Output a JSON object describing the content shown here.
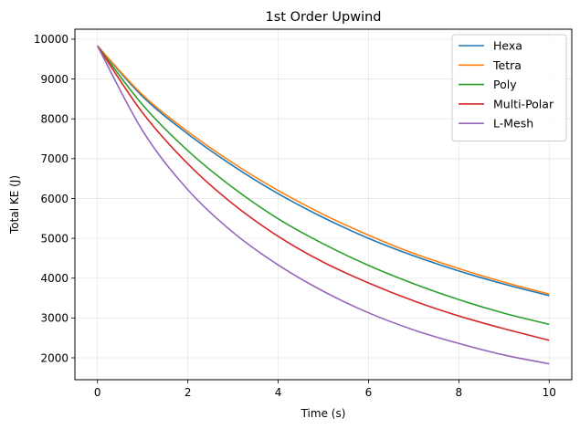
{
  "chart_data": {
    "type": "line",
    "title": "1st Order Upwind",
    "xlabel": "Time (s)",
    "ylabel": "Total KE (J)",
    "xlim": [
      -0.5,
      10.5
    ],
    "ylim": [
      1450,
      10250
    ],
    "xticks": [
      0,
      2,
      4,
      6,
      8,
      10
    ],
    "yticks": [
      2000,
      3000,
      4000,
      5000,
      6000,
      7000,
      8000,
      9000,
      10000
    ],
    "grid": true,
    "legend_position": "top-right",
    "x": [
      0,
      1,
      2,
      3,
      4,
      5,
      6,
      7,
      8,
      9,
      10
    ],
    "series": [
      {
        "name": "Hexa",
        "color": "#1f77b4",
        "values": [
          9830,
          8560,
          7620,
          6820,
          6120,
          5520,
          5000,
          4560,
          4180,
          3850,
          3560
        ]
      },
      {
        "name": "Tetra",
        "color": "#ff7f0e",
        "values": [
          9830,
          8600,
          7680,
          6890,
          6200,
          5600,
          5080,
          4620,
          4240,
          3900,
          3600
        ]
      },
      {
        "name": "Poly",
        "color": "#2ca02c",
        "values": [
          9830,
          8350,
          7200,
          6270,
          5490,
          4860,
          4320,
          3860,
          3460,
          3120,
          2840
        ]
      },
      {
        "name": "Multi-Polar",
        "color": "#d62728",
        "values": [
          9830,
          8150,
          6870,
          5860,
          5050,
          4400,
          3880,
          3430,
          3050,
          2730,
          2440
        ]
      },
      {
        "name": "L-Mesh",
        "color": "#9467bd",
        "values": [
          9830,
          7700,
          6220,
          5150,
          4330,
          3670,
          3130,
          2700,
          2360,
          2070,
          1850
        ]
      }
    ]
  }
}
